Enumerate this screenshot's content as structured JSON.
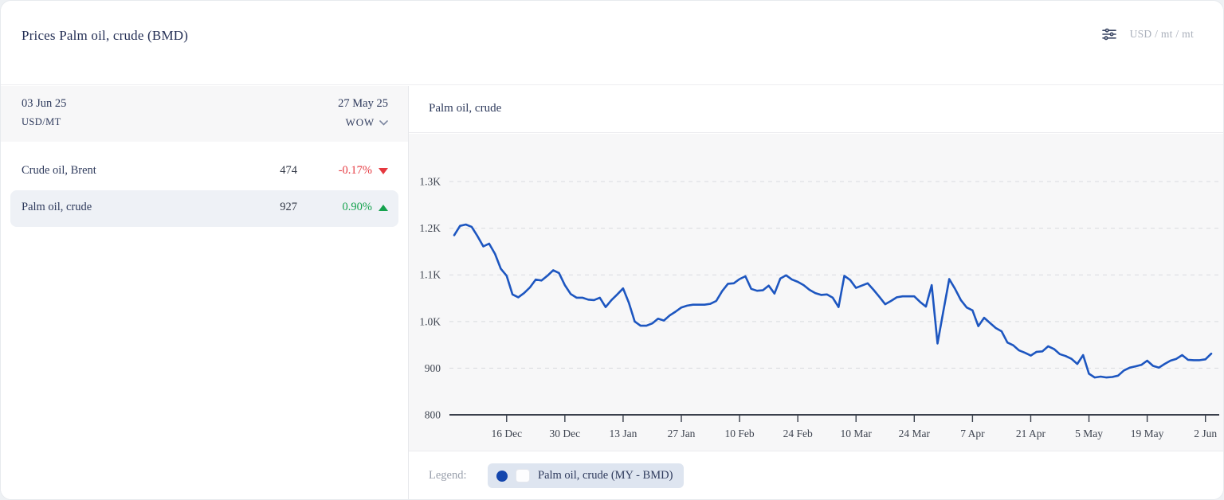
{
  "header": {
    "title": "Prices Palm oil, crude (BMD)",
    "units_label": "USD / mt / mt",
    "settings_icon": "sliders-icon"
  },
  "watchlist": {
    "current_date": "03 Jun 25",
    "unit": "USD/MT",
    "compare_date": "27 May 25",
    "period_selector": "WOW",
    "rows": [
      {
        "name": "Crude oil, Brent",
        "value": "474",
        "change": "-0.17%",
        "direction": "down",
        "selected": false
      },
      {
        "name": "Palm oil, crude",
        "value": "927",
        "change": "0.90%",
        "direction": "up",
        "selected": true
      }
    ]
  },
  "chart_panel": {
    "title": "Palm oil, crude",
    "legend_label": "Legend:",
    "legend_item": "Palm oil, crude (MY - BMD)"
  },
  "chart_data": {
    "type": "line",
    "title": "Palm oil, crude",
    "xlabel": "",
    "ylabel": "USD/MT",
    "ylim": [
      800,
      1390
    ],
    "grid": "dashed-horizontal",
    "legend_position": "bottom",
    "y_ticks": [
      800,
      900,
      1000,
      1100,
      1200,
      1300
    ],
    "y_tick_labels": [
      "800",
      "900",
      "1.0K",
      "1.1K",
      "1.2K",
      "1.3K"
    ],
    "x_tick_labels": [
      "16 Dec",
      "30 Dec",
      "13 Jan",
      "27 Jan",
      "10 Feb",
      "24 Feb",
      "10 Mar",
      "24 Mar",
      "7 Apr",
      "21 Apr",
      "5 May",
      "19 May",
      "2 Jun"
    ],
    "x_tick_indices": [
      9,
      19,
      29,
      39,
      49,
      59,
      69,
      79,
      89,
      99,
      109,
      119,
      129
    ],
    "series": [
      {
        "name": "Palm oil, crude (MY - BMD)",
        "color": "#1d56c0",
        "values": [
          1185,
          1205,
          1208,
          1203,
          1183,
          1161,
          1167,
          1145,
          1113,
          1098,
          1058,
          1052,
          1061,
          1073,
          1090,
          1088,
          1098,
          1110,
          1104,
          1078,
          1059,
          1051,
          1051,
          1047,
          1046,
          1051,
          1031,
          1046,
          1058,
          1071,
          1040,
          1000,
          991,
          991,
          996,
          1006,
          1002,
          1013,
          1021,
          1030,
          1034,
          1036,
          1036,
          1036,
          1038,
          1044,
          1065,
          1081,
          1082,
          1091,
          1097,
          1070,
          1066,
          1067,
          1077,
          1060,
          1092,
          1099,
          1090,
          1085,
          1078,
          1068,
          1061,
          1057,
          1058,
          1051,
          1031,
          1098,
          1089,
          1072,
          1077,
          1082,
          1068,
          1053,
          1037,
          1044,
          1052,
          1054,
          1054,
          1054,
          1042,
          1032,
          1078,
          953,
          1022,
          1091,
          1070,
          1046,
          1030,
          1024,
          990,
          1008,
          997,
          986,
          979,
          955,
          949,
          938,
          933,
          927,
          935,
          936,
          947,
          941,
          930,
          926,
          920,
          909,
          928,
          888,
          880,
          882,
          880,
          881,
          884,
          895,
          901,
          904,
          907,
          916,
          905,
          901,
          909,
          916,
          920,
          928,
          918,
          917,
          917,
          919,
          931
        ]
      }
    ]
  },
  "colors": {
    "accent_blue": "#1d56c0",
    "negative_red": "#e5383f",
    "positive_green": "#15a24e",
    "navy_text": "#2e3a5c",
    "muted_gray": "#9aa0ac",
    "panel_gray": "#f7f7f8",
    "selected_row": "#eef1f6",
    "legend_pill": "#dee5f0"
  }
}
